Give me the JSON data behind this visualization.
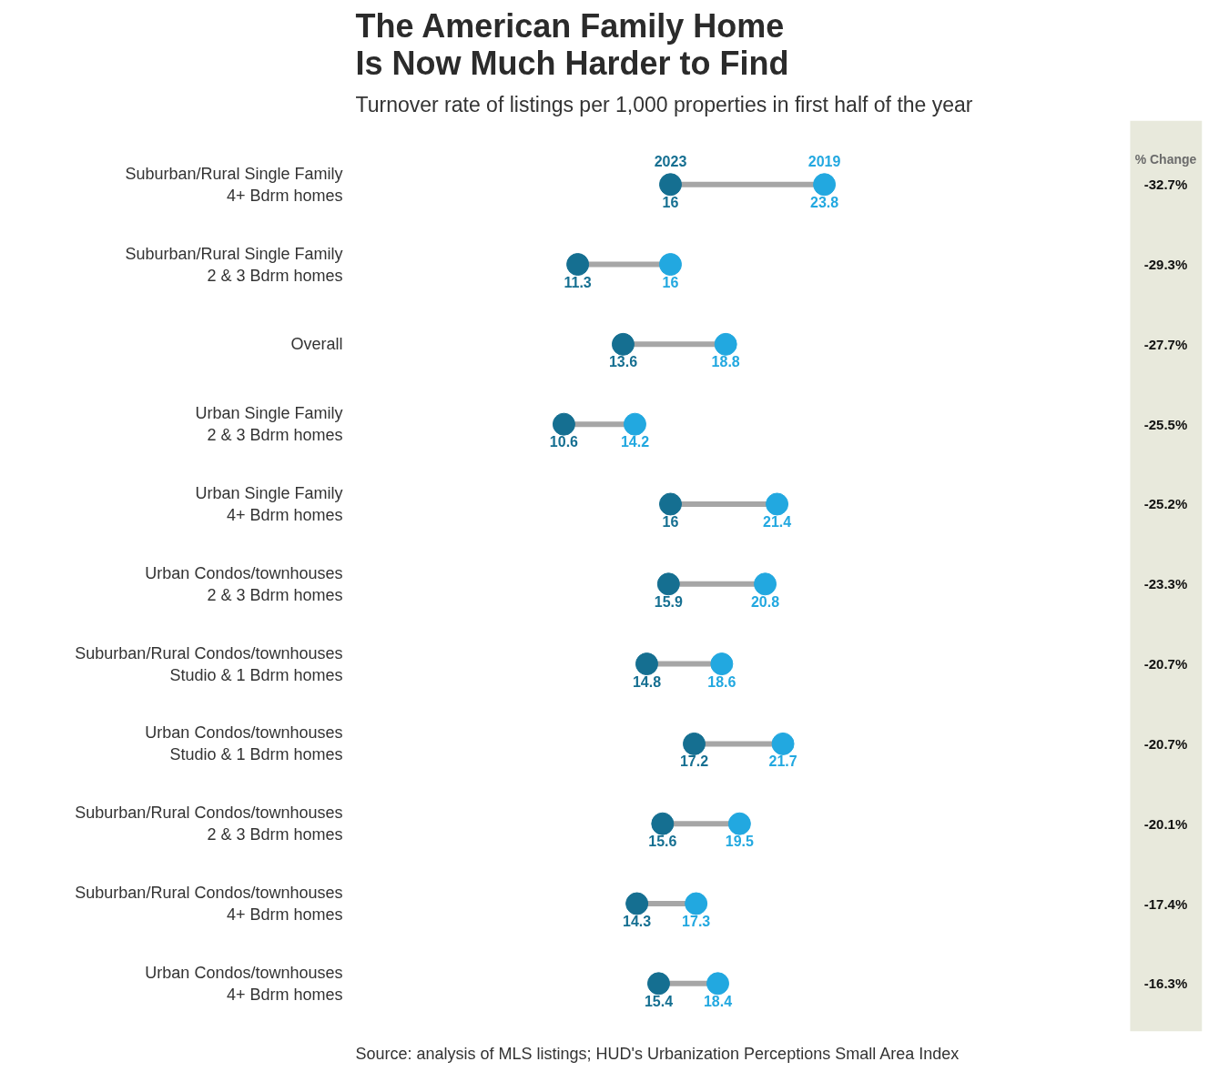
{
  "chart_data": {
    "type": "scatter",
    "orientation": "horizontal",
    "title": "The American Family Home\nIs Now Much Harder to Find",
    "subtitle": "Turnover rate of listings per 1,000 properties in first half of the year",
    "categories": [
      "Suburban/Rural Single Family\n4+ Bdrm homes",
      "Suburban/Rural Single Family\n2 & 3 Bdrm homes",
      "Overall",
      "Urban Single Family\n2 & 3 Bdrm homes",
      "Urban Single Family\n4+ Bdrm homes",
      "Urban Condos/townhouses\n2 & 3 Bdrm homes",
      "Suburban/Rural Condos/townhouses\nStudio & 1 Bdrm homes",
      "Urban Condos/townhouses\nStudio & 1 Bdrm homes",
      "Suburban/Rural Condos/townhouses\n2 & 3 Bdrm homes",
      "Suburban/Rural Condos/townhouses\n4+ Bdrm homes",
      "Urban Condos/townhouses\n4+ Bdrm homes"
    ],
    "series": [
      {
        "name": "2023",
        "color": "#156f91",
        "values": [
          16,
          11.3,
          13.6,
          10.6,
          16,
          15.9,
          14.8,
          17.2,
          15.6,
          14.3,
          15.4
        ]
      },
      {
        "name": "2019",
        "color": "#22a8e0",
        "values": [
          23.8,
          16,
          18.8,
          14.2,
          21.4,
          20.8,
          18.6,
          21.7,
          19.5,
          17.3,
          18.4
        ]
      }
    ],
    "data_labels": true,
    "marker": "circle",
    "legend": false,
    "grid": false,
    "tick_labels": "y",
    "annotations": [
      "% Change",
      "-32.7%",
      "-29.3%",
      "-27.7%",
      "-25.5%",
      "-25.2%",
      "-23.3%",
      "-20.7%",
      "-20.7%",
      "-20.1%",
      "-17.4%",
      "-16.3%",
      "Source: analysis of MLS listings; HUD's Urbanization Perceptions Small Area Index"
    ]
  }
}
